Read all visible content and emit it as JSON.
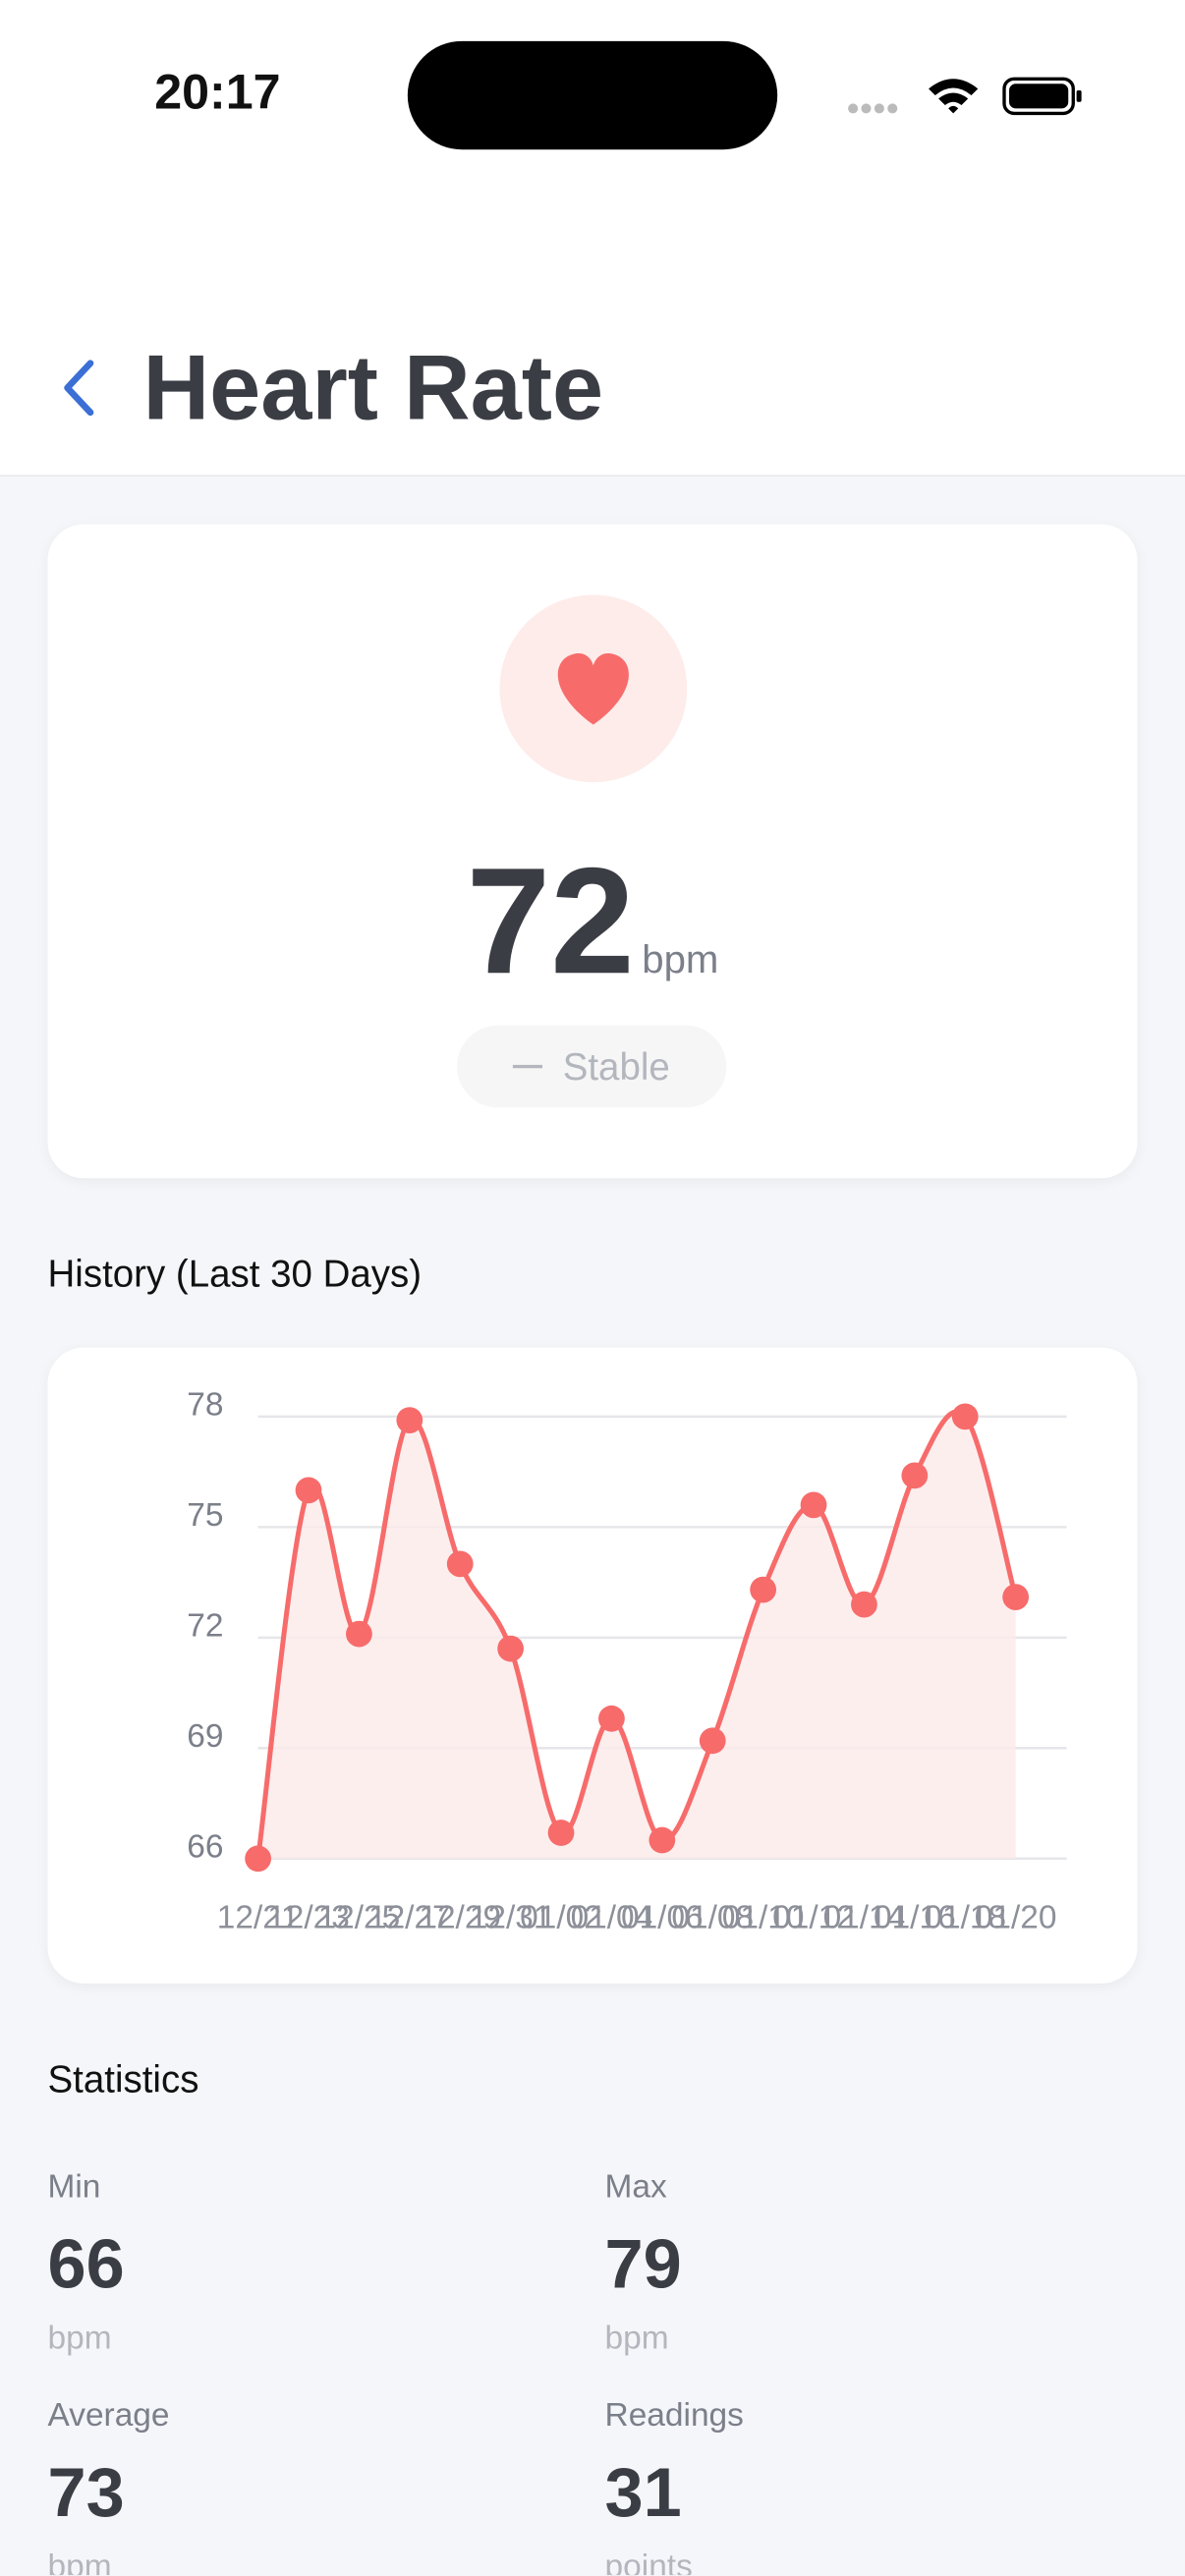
{
  "status_bar": {
    "time": "20:17"
  },
  "header": {
    "title": "Heart Rate"
  },
  "current": {
    "value": "72",
    "unit": "bpm",
    "status": "Stable"
  },
  "history_title": "History (Last 30 Days)",
  "chart_data": {
    "type": "line",
    "color": "#f76b6b",
    "fill": "#fdeaea",
    "categories": [
      "12/21",
      "12/23",
      "12/25",
      "12/27",
      "12/29",
      "12/31",
      "01/02",
      "01/04",
      "01/06",
      "01/08",
      "01/10",
      "01/12",
      "01/14",
      "01/16",
      "01/18",
      "01/20"
    ],
    "values": [
      66,
      76.0,
      72.1,
      77.9,
      74.0,
      71.7,
      66.7,
      69.8,
      66.5,
      69.2,
      73.3,
      75.6,
      72.9,
      76.4,
      78.0,
      73.1
    ],
    "ylim": [
      66,
      78
    ],
    "yticks": [
      66,
      69,
      72,
      75,
      78
    ],
    "grid": true
  },
  "statistics": {
    "title": "Statistics",
    "items": [
      {
        "label": "Min",
        "value": "66",
        "unit": "bpm"
      },
      {
        "label": "Max",
        "value": "79",
        "unit": "bpm"
      },
      {
        "label": "Average",
        "value": "73",
        "unit": "bpm"
      },
      {
        "label": "Readings",
        "value": "31",
        "unit": "points"
      }
    ]
  }
}
